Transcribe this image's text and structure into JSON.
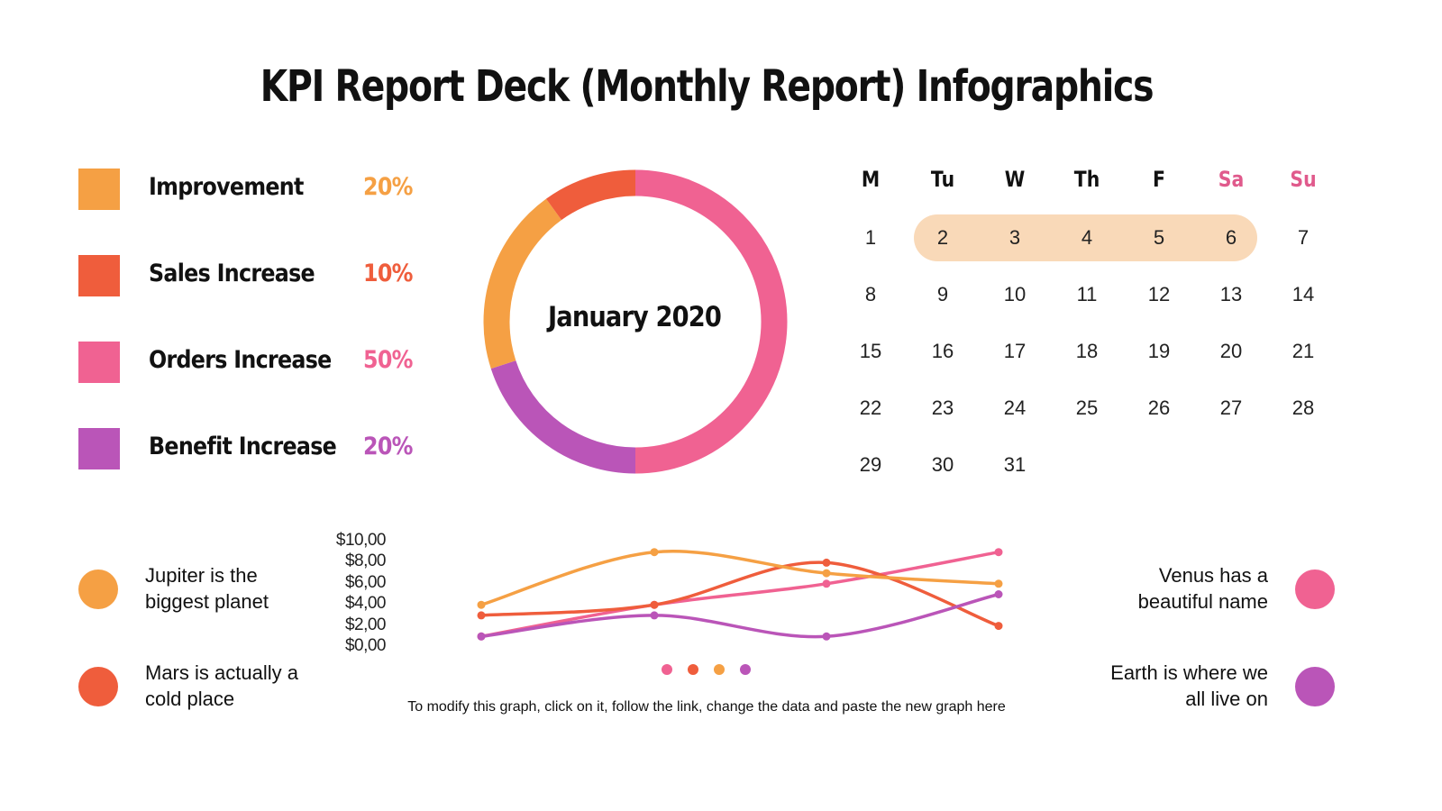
{
  "title": "KPI Report Deck (Monthly Report) Infographics",
  "colors": {
    "orange": "#f5a044",
    "red": "#ef5d3c",
    "pink": "#f06292",
    "purple": "#ba55b8",
    "highlight": "#f9d9b8"
  },
  "kpis": [
    {
      "label": "Improvement",
      "value": "20%",
      "percent": 20,
      "color": "#f5a044"
    },
    {
      "label": "Sales Increase",
      "value": "10%",
      "percent": 10,
      "color": "#ef5d3c"
    },
    {
      "label": "Orders Increase",
      "value": "50%",
      "percent": 50,
      "color": "#f06292"
    },
    {
      "label": "Benefit Increase",
      "value": "20%",
      "percent": 20,
      "color": "#ba55b8"
    }
  ],
  "donut": {
    "center_label": "January 2020"
  },
  "calendar": {
    "headers": [
      "M",
      "Tu",
      "W",
      "Th",
      "F",
      "Sa",
      "Su"
    ],
    "weekend_color": "#e05a8c",
    "highlighted_days": [
      2,
      3,
      4,
      5,
      6
    ],
    "weeks": [
      [
        "1",
        "2",
        "3",
        "4",
        "5",
        "6",
        "7"
      ],
      [
        "8",
        "9",
        "10",
        "11",
        "12",
        "13",
        "14"
      ],
      [
        "15",
        "16",
        "17",
        "18",
        "19",
        "20",
        "21"
      ],
      [
        "22",
        "23",
        "24",
        "25",
        "26",
        "27",
        "28"
      ],
      [
        "29",
        "30",
        "31",
        "",
        "",
        "",
        ""
      ]
    ]
  },
  "notes": {
    "left": [
      {
        "text1": "Jupiter is the",
        "text2": "biggest planet",
        "color": "#f5a044"
      },
      {
        "text1": "Mars is actually a",
        "text2": "cold place",
        "color": "#ef5d3c"
      }
    ],
    "right": [
      {
        "text1": "Venus has a",
        "text2": "beautiful name",
        "color": "#f06292"
      },
      {
        "text1": "Earth is where we",
        "text2": "all live on",
        "color": "#ba55b8"
      }
    ]
  },
  "chart_data": {
    "type": "line",
    "x": [
      1,
      2,
      3,
      4
    ],
    "yticks": [
      "$10,00",
      "$8,00",
      "$6,00",
      "$4,00",
      "$2,00",
      "$0,00"
    ],
    "ylim": [
      0,
      10
    ],
    "grid": false,
    "legend": "bottom",
    "smooth": true,
    "series": [
      {
        "color": "#f06292",
        "values": [
          1,
          4,
          6,
          9
        ]
      },
      {
        "color": "#ef5d3c",
        "values": [
          3,
          4,
          8,
          2
        ]
      },
      {
        "color": "#f5a044",
        "values": [
          4,
          9,
          7,
          6
        ]
      },
      {
        "color": "#ba55b8",
        "values": [
          1,
          3,
          1,
          5
        ]
      }
    ]
  },
  "footnote": "To modify this graph, click on it, follow the link, change the data and paste the new graph here"
}
